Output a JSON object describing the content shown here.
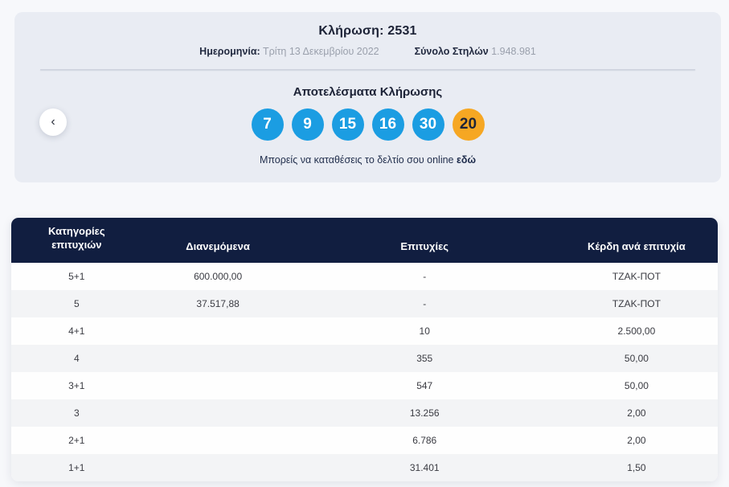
{
  "colors": {
    "ball_blue": "#1b9de2",
    "joker_orange": "#f6a723",
    "header_navy": "#111e40",
    "card_bg": "#e9ecf3"
  },
  "nav": {
    "prev_icon": "‹"
  },
  "card": {
    "title": "Κλήρωση: 2531",
    "date_label": "Ημερομηνία:",
    "date_value": "Τρίτη 13 Δεκεμβρίου 2022",
    "columns_label": "Σύνολο Στηλών",
    "columns_value": "1.948.981",
    "results_title": "Αποτελέσματα Κλήρωσης",
    "numbers": [
      "7",
      "9",
      "15",
      "16",
      "30"
    ],
    "joker_number": "20",
    "cta_text": "Μπορείς να καταθέσεις το δελτίο σου online",
    "cta_link": "εδώ"
  },
  "table": {
    "headers": {
      "category": "Κατηγορίες επιτυχιών",
      "distributed": "Διανεμόμενα",
      "winners": "Επιτυχίες",
      "prize": "Κέρδη ανά επιτυχία"
    },
    "rows": [
      {
        "category": "5+1",
        "distributed": "600.000,00",
        "winners": "-",
        "prize": "ΤΖΑΚ-ΠΟΤ"
      },
      {
        "category": "5",
        "distributed": "37.517,88",
        "winners": "-",
        "prize": "ΤΖΑΚ-ΠΟΤ"
      },
      {
        "category": "4+1",
        "distributed": "",
        "winners": "10",
        "prize": "2.500,00"
      },
      {
        "category": "4",
        "distributed": "",
        "winners": "355",
        "prize": "50,00"
      },
      {
        "category": "3+1",
        "distributed": "",
        "winners": "547",
        "prize": "50,00"
      },
      {
        "category": "3",
        "distributed": "",
        "winners": "13.256",
        "prize": "2,00"
      },
      {
        "category": "2+1",
        "distributed": "",
        "winners": "6.786",
        "prize": "2,00"
      },
      {
        "category": "1+1",
        "distributed": "",
        "winners": "31.401",
        "prize": "1,50"
      }
    ]
  }
}
